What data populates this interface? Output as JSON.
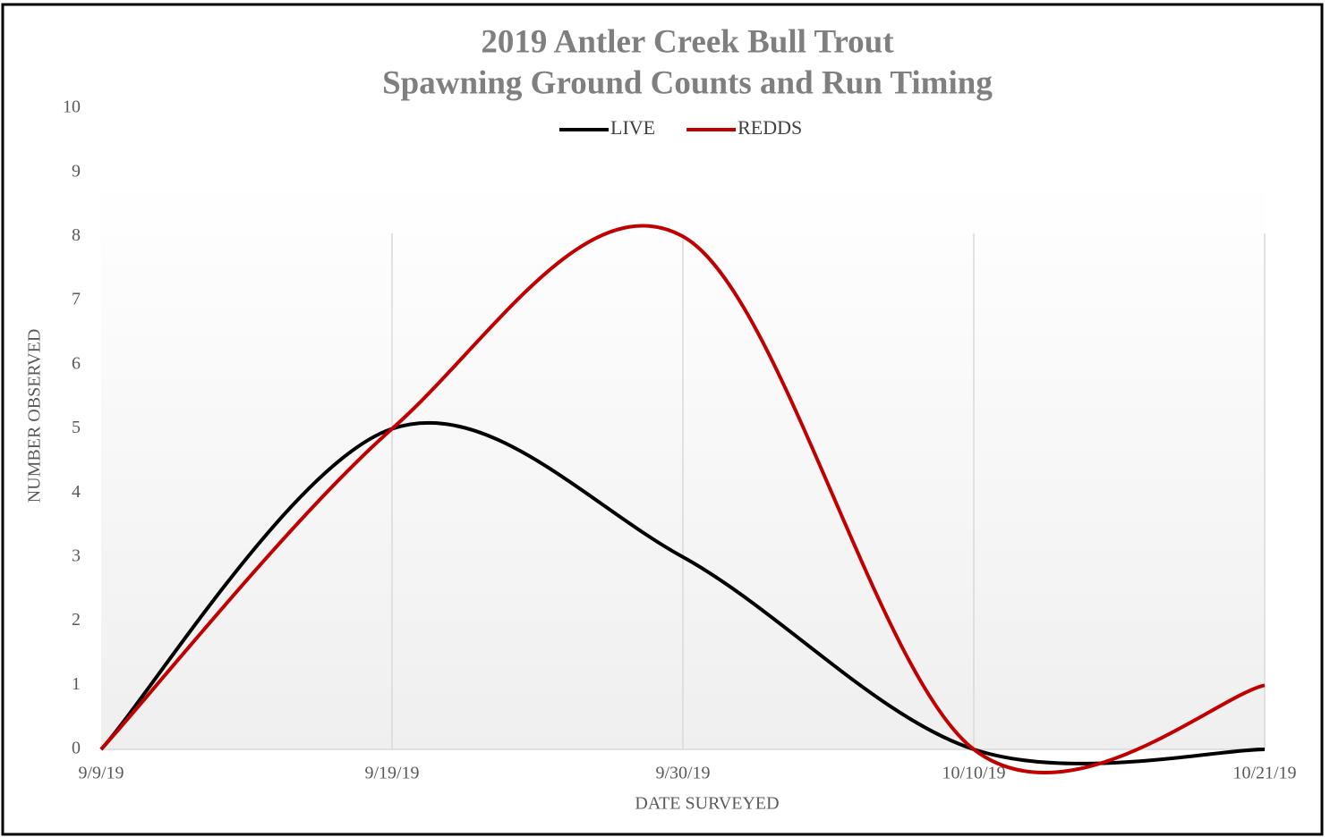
{
  "chart_data": {
    "type": "line",
    "title": [
      "2019 Antler Creek Bull Trout",
      "Spawning Ground Counts and Run Timing"
    ],
    "x_label": "DATE SURVEYED",
    "y_label": "NUMBER OBSERVED",
    "categories": [
      "9/9/19",
      "9/19/19",
      "9/30/19",
      "10/10/19",
      "10/21/19"
    ],
    "series": [
      {
        "name": "LIVE",
        "color": "#000000",
        "values": [
          0,
          5,
          3,
          0,
          0
        ]
      },
      {
        "name": "REDDS",
        "color": "#c00000",
        "values": [
          0,
          5,
          8,
          0,
          1
        ]
      }
    ],
    "ylim": [
      0,
      10
    ],
    "yticks": [
      0,
      1,
      2,
      3,
      4,
      5,
      6,
      7,
      8,
      9,
      10
    ],
    "smooth": true,
    "grid": "x",
    "legend": "top"
  }
}
